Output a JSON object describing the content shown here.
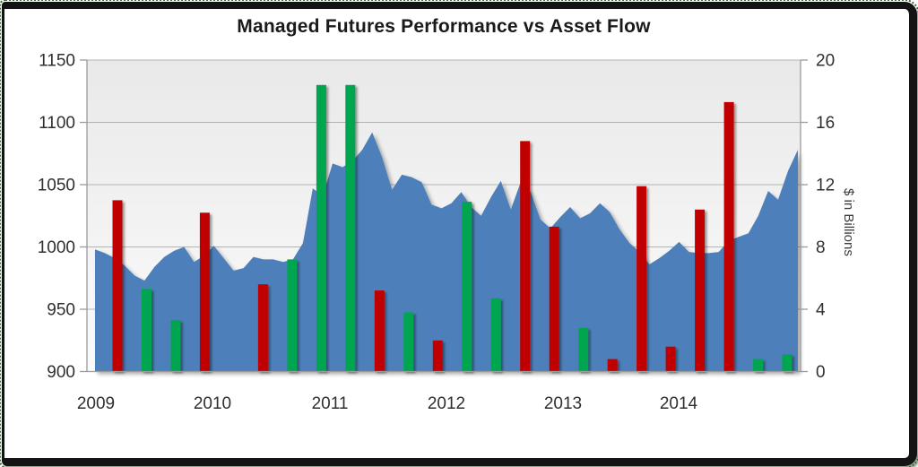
{
  "chart_data": {
    "type": "combo",
    "title": "Managed Futures Performance vs Asset Flow",
    "left_axis": {
      "min": 900,
      "max": 1150,
      "tick_step": 50,
      "ticks": [
        "1150",
        "1100",
        "1050",
        "1000",
        "950",
        "900"
      ]
    },
    "right_axis": {
      "title": "$ in Billions",
      "min": 0,
      "max": 20,
      "tick_step": 4,
      "ticks": [
        "20",
        "16",
        "12",
        "8",
        "4",
        "0"
      ]
    },
    "x_axis": {
      "year_labels": [
        "2009",
        "2010",
        "2011",
        "2012",
        "2013",
        "2014"
      ]
    },
    "grid": true,
    "legend": "none",
    "series": [
      {
        "name": "Managed Futures Performance",
        "type": "area",
        "axis": "left",
        "x_start": "2009-01",
        "x_step_months": 1,
        "values": [
          998,
          995,
          991,
          985,
          977,
          973,
          984,
          992,
          997,
          1000,
          988,
          993,
          1001,
          991,
          981,
          983,
          992,
          990,
          990,
          988,
          990,
          1003,
          1047,
          1041,
          1067,
          1064,
          1069,
          1078,
          1092,
          1072,
          1046,
          1058,
          1056,
          1052,
          1034,
          1031,
          1035,
          1044,
          1032,
          1025,
          1040,
          1053,
          1030,
          1052,
          1044,
          1022,
          1015,
          1024,
          1032,
          1023,
          1027,
          1035,
          1028,
          1014,
          1003,
          996,
          986,
          991,
          997,
          1004,
          996,
          995,
          995,
          996,
          1005,
          1008,
          1011,
          1025,
          1045,
          1038,
          1061,
          1078
        ]
      },
      {
        "name": "Asset Flow",
        "type": "bar",
        "axis": "right",
        "points": [
          {
            "period": "2009 Q1",
            "value": 11.0,
            "color": "red"
          },
          {
            "period": "2009 Q2",
            "value": 5.3,
            "color": "green"
          },
          {
            "period": "2009 Q3",
            "value": 3.3,
            "color": "green"
          },
          {
            "period": "2009 Q4",
            "value": 10.2,
            "color": "red"
          },
          {
            "period": "2010 Q2",
            "value": 5.6,
            "color": "red"
          },
          {
            "period": "2010 Q3",
            "value": 7.2,
            "color": "green"
          },
          {
            "period": "2010 Q4",
            "value": 18.4,
            "color": "green"
          },
          {
            "period": "2011 Q1",
            "value": 18.4,
            "color": "green"
          },
          {
            "period": "2011 Q2",
            "value": 5.2,
            "color": "red"
          },
          {
            "period": "2011 Q3",
            "value": 3.8,
            "color": "green"
          },
          {
            "period": "2011 Q4",
            "value": 2.0,
            "color": "red"
          },
          {
            "period": "2012 Q1",
            "value": 10.9,
            "color": "green"
          },
          {
            "period": "2012 Q2",
            "value": 4.7,
            "color": "green"
          },
          {
            "period": "2012 Q3",
            "value": 14.8,
            "color": "red"
          },
          {
            "period": "2012 Q4",
            "value": 9.3,
            "color": "red"
          },
          {
            "period": "2013 Q1",
            "value": 2.8,
            "color": "green"
          },
          {
            "period": "2013 Q2",
            "value": 0.8,
            "color": "red"
          },
          {
            "period": "2013 Q3",
            "value": 11.9,
            "color": "red"
          },
          {
            "period": "2013 Q4",
            "value": 1.6,
            "color": "red"
          },
          {
            "period": "2014 Q1",
            "value": 10.4,
            "color": "red"
          },
          {
            "period": "2014 Q2",
            "value": 17.3,
            "color": "red"
          },
          {
            "period": "2014 Q3",
            "value": 0.8,
            "color": "green"
          },
          {
            "period": "2014 Q4",
            "value": 1.1,
            "color": "green"
          }
        ]
      }
    ]
  },
  "colors": {
    "area": "#4d80ba",
    "bar_red": "#c00000",
    "bar_green": "#00a550",
    "plot_bg_top": "#e9e9e9",
    "plot_bg_bottom": "#fbfbfb",
    "gridline": "#b3b3b3",
    "axis_line": "#9b9b9b",
    "tick_text": "#2f2f2f",
    "title_text": "#1a1a1a",
    "frame": "#141414"
  }
}
